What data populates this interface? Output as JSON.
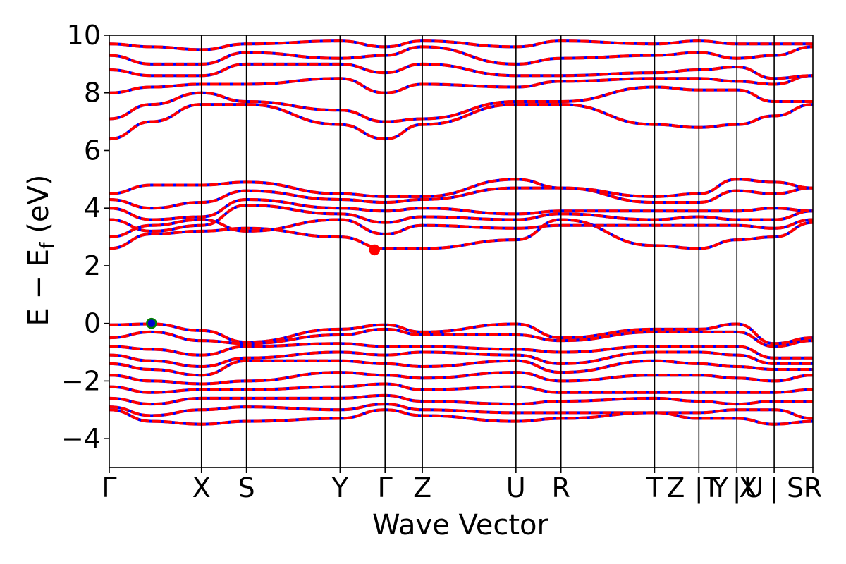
{
  "chart_data": {
    "type": "line",
    "title": "",
    "xlabel": "Wave Vector",
    "ylabel_main": "E − E",
    "ylabel_sub": "f",
    "ylabel_unit": " (eV)",
    "ylim": [
      -5,
      10
    ],
    "yticks": [
      {
        "value": 10,
        "label": "10"
      },
      {
        "value": 8,
        "label": "8"
      },
      {
        "value": 6,
        "label": "6"
      },
      {
        "value": 4,
        "label": "4"
      },
      {
        "value": 2,
        "label": "2"
      },
      {
        "value": 0,
        "label": "0"
      },
      {
        "value": -2,
        "label": "−2"
      },
      {
        "value": -4,
        "label": "−4"
      }
    ],
    "xlim": [
      0,
      1
    ],
    "kpoint_positions": [
      0,
      0.131,
      0.195,
      0.328,
      0.392,
      0.445,
      0.578,
      0.642,
      0.775,
      0.838,
      0.892,
      0.945,
      1.0
    ],
    "kpoint_labels": [
      {
        "x": 0.0,
        "label": "Γ"
      },
      {
        "x": 0.131,
        "label": "X"
      },
      {
        "x": 0.195,
        "label": "S"
      },
      {
        "x": 0.328,
        "label": "Y"
      },
      {
        "x": 0.392,
        "label": "Γ"
      },
      {
        "x": 0.445,
        "label": "Z"
      },
      {
        "x": 0.578,
        "label": "U"
      },
      {
        "x": 0.642,
        "label": "R"
      },
      {
        "x": 0.775,
        "label": "T"
      },
      {
        "x": 0.805,
        "label": "Z"
      },
      {
        "x": 0.838,
        "label": "|"
      },
      {
        "x": 0.856,
        "label": "T"
      },
      {
        "x": 0.868,
        "label": "Y"
      },
      {
        "x": 0.892,
        "label": "|"
      },
      {
        "x": 0.908,
        "label": "X"
      },
      {
        "x": 0.916,
        "label": "U"
      },
      {
        "x": 0.945,
        "label": "|"
      },
      {
        "x": 0.975,
        "label": "S"
      },
      {
        "x": 1.0,
        "label": "R"
      }
    ],
    "series": [
      {
        "color": "#0000ff",
        "style": "solid"
      },
      {
        "color": "#ff0000",
        "style": "dashed"
      }
    ],
    "bands": [
      [
        [
          0,
          -0.05
        ],
        [
          0.06,
          -0.02
        ],
        [
          0.131,
          -0.25
        ],
        [
          0.195,
          -0.65
        ],
        [
          0.328,
          -0.2
        ],
        [
          0.392,
          -0.05
        ],
        [
          0.445,
          -0.3
        ],
        [
          0.578,
          -0.02
        ],
        [
          0.642,
          -0.5
        ],
        [
          0.775,
          -0.2
        ],
        [
          0.838,
          -0.2
        ],
        [
          0.892,
          -0.02
        ],
        [
          0.945,
          -0.7
        ],
        [
          1.0,
          -0.5
        ]
      ],
      [
        [
          0,
          -0.5
        ],
        [
          0.06,
          -0.3
        ],
        [
          0.131,
          -0.6
        ],
        [
          0.195,
          -0.7
        ],
        [
          0.328,
          -0.4
        ],
        [
          0.392,
          -0.2
        ],
        [
          0.445,
          -0.4
        ],
        [
          0.578,
          -0.4
        ],
        [
          0.642,
          -0.6
        ],
        [
          0.775,
          -0.3
        ],
        [
          0.838,
          -0.3
        ],
        [
          0.892,
          -0.3
        ],
        [
          0.945,
          -0.8
        ],
        [
          1.0,
          -0.6
        ]
      ],
      [
        [
          0,
          -0.8
        ],
        [
          0.06,
          -0.9
        ],
        [
          0.131,
          -1.1
        ],
        [
          0.195,
          -0.8
        ],
        [
          0.328,
          -0.7
        ],
        [
          0.392,
          -0.8
        ],
        [
          0.445,
          -0.8
        ],
        [
          0.578,
          -0.9
        ],
        [
          0.642,
          -1.0
        ],
        [
          0.775,
          -0.8
        ],
        [
          0.838,
          -0.8
        ],
        [
          0.892,
          -0.8
        ],
        [
          0.945,
          -1.2
        ],
        [
          1.0,
          -1.2
        ]
      ],
      [
        [
          0,
          -1.1
        ],
        [
          0.06,
          -1.3
        ],
        [
          0.131,
          -1.5
        ],
        [
          0.195,
          -1.2
        ],
        [
          0.328,
          -1.0
        ],
        [
          0.392,
          -1.1
        ],
        [
          0.445,
          -1.0
        ],
        [
          0.578,
          -1.1
        ],
        [
          0.642,
          -1.4
        ],
        [
          0.775,
          -1.0
        ],
        [
          0.838,
          -1.0
        ],
        [
          0.892,
          -1.1
        ],
        [
          0.945,
          -1.4
        ],
        [
          1.0,
          -1.4
        ]
      ],
      [
        [
          0,
          -1.4
        ],
        [
          0.06,
          -1.6
        ],
        [
          0.131,
          -1.8
        ],
        [
          0.195,
          -1.3
        ],
        [
          0.328,
          -1.3
        ],
        [
          0.392,
          -1.4
        ],
        [
          0.445,
          -1.5
        ],
        [
          0.578,
          -1.3
        ],
        [
          0.642,
          -1.7
        ],
        [
          0.775,
          -1.3
        ],
        [
          0.838,
          -1.4
        ],
        [
          0.892,
          -1.5
        ],
        [
          0.945,
          -1.6
        ],
        [
          1.0,
          -1.6
        ]
      ],
      [
        [
          0,
          -1.8
        ],
        [
          0.06,
          -2.0
        ],
        [
          0.131,
          -2.1
        ],
        [
          0.195,
          -2.0
        ],
        [
          0.328,
          -1.7
        ],
        [
          0.392,
          -1.8
        ],
        [
          0.445,
          -1.9
        ],
        [
          0.578,
          -1.7
        ],
        [
          0.642,
          -2.0
        ],
        [
          0.775,
          -1.8
        ],
        [
          0.838,
          -1.8
        ],
        [
          0.892,
          -1.9
        ],
        [
          0.945,
          -2.0
        ],
        [
          1.0,
          -1.8
        ]
      ],
      [
        [
          0,
          -2.2
        ],
        [
          0.06,
          -2.4
        ],
        [
          0.131,
          -2.3
        ],
        [
          0.195,
          -2.3
        ],
        [
          0.328,
          -2.2
        ],
        [
          0.392,
          -2.1
        ],
        [
          0.445,
          -2.3
        ],
        [
          0.578,
          -2.2
        ],
        [
          0.642,
          -2.4
        ],
        [
          0.775,
          -2.4
        ],
        [
          0.838,
          -2.4
        ],
        [
          0.892,
          -2.4
        ],
        [
          0.945,
          -2.4
        ],
        [
          1.0,
          -2.3
        ]
      ],
      [
        [
          0,
          -2.6
        ],
        [
          0.06,
          -2.8
        ],
        [
          0.131,
          -2.6
        ],
        [
          0.195,
          -2.6
        ],
        [
          0.328,
          -2.6
        ],
        [
          0.392,
          -2.5
        ],
        [
          0.445,
          -2.7
        ],
        [
          0.578,
          -2.8
        ],
        [
          0.642,
          -2.7
        ],
        [
          0.775,
          -2.6
        ],
        [
          0.838,
          -2.7
        ],
        [
          0.892,
          -2.8
        ],
        [
          0.945,
          -2.7
        ],
        [
          1.0,
          -2.7
        ]
      ],
      [
        [
          0,
          -2.9
        ],
        [
          0.06,
          -3.2
        ],
        [
          0.131,
          -3.0
        ],
        [
          0.195,
          -2.9
        ],
        [
          0.328,
          -3.0
        ],
        [
          0.392,
          -2.8
        ],
        [
          0.445,
          -3.0
        ],
        [
          0.578,
          -3.1
        ],
        [
          0.642,
          -3.1
        ],
        [
          0.775,
          -3.1
        ],
        [
          0.838,
          -3.1
        ],
        [
          0.892,
          -3.0
        ],
        [
          0.945,
          -3.0
        ],
        [
          1.0,
          -3.3
        ]
      ],
      [
        [
          0,
          -3.0
        ],
        [
          0.06,
          -3.4
        ],
        [
          0.131,
          -3.5
        ],
        [
          0.195,
          -3.4
        ],
        [
          0.328,
          -3.3
        ],
        [
          0.392,
          -3.0
        ],
        [
          0.445,
          -3.2
        ],
        [
          0.578,
          -3.4
        ],
        [
          0.642,
          -3.3
        ],
        [
          0.775,
          -3.1
        ],
        [
          0.838,
          -3.3
        ],
        [
          0.892,
          -3.3
        ],
        [
          0.945,
          -3.5
        ],
        [
          1.0,
          -3.4
        ]
      ],
      [
        [
          0,
          2.6
        ],
        [
          0.06,
          3.1
        ],
        [
          0.131,
          3.2
        ],
        [
          0.195,
          3.3
        ],
        [
          0.328,
          3.0
        ],
        [
          0.392,
          2.6
        ],
        [
          0.445,
          2.6
        ],
        [
          0.578,
          2.9
        ],
        [
          0.642,
          3.6
        ],
        [
          0.775,
          2.7
        ],
        [
          0.838,
          2.6
        ],
        [
          0.892,
          2.9
        ],
        [
          0.945,
          3.0
        ],
        [
          1.0,
          3.5
        ]
      ],
      [
        [
          0,
          3.0
        ],
        [
          0.06,
          3.4
        ],
        [
          0.131,
          3.6
        ],
        [
          0.195,
          3.2
        ],
        [
          0.328,
          3.6
        ],
        [
          0.392,
          3.1
        ],
        [
          0.445,
          3.4
        ],
        [
          0.578,
          3.3
        ],
        [
          0.642,
          3.4
        ],
        [
          0.775,
          3.4
        ],
        [
          0.838,
          3.4
        ],
        [
          0.892,
          3.4
        ],
        [
          0.945,
          3.3
        ],
        [
          1.0,
          3.6
        ]
      ],
      [
        [
          0,
          3.6
        ],
        [
          0.06,
          3.2
        ],
        [
          0.131,
          3.4
        ],
        [
          0.195,
          4.1
        ],
        [
          0.328,
          3.8
        ],
        [
          0.392,
          3.5
        ],
        [
          0.445,
          3.7
        ],
        [
          0.578,
          3.6
        ],
        [
          0.642,
          3.8
        ],
        [
          0.775,
          3.6
        ],
        [
          0.838,
          3.7
        ],
        [
          0.892,
          3.6
        ],
        [
          0.945,
          3.6
        ],
        [
          1.0,
          3.9
        ]
      ],
      [
        [
          0,
          4.0
        ],
        [
          0.06,
          3.6
        ],
        [
          0.131,
          3.7
        ],
        [
          0.195,
          4.3
        ],
        [
          0.328,
          4.0
        ],
        [
          0.392,
          3.9
        ],
        [
          0.445,
          4.0
        ],
        [
          0.578,
          3.8
        ],
        [
          0.642,
          3.9
        ],
        [
          0.775,
          3.9
        ],
        [
          0.838,
          3.9
        ],
        [
          0.892,
          3.9
        ],
        [
          0.945,
          4.0
        ],
        [
          1.0,
          3.9
        ]
      ],
      [
        [
          0,
          4.3
        ],
        [
          0.06,
          4.0
        ],
        [
          0.131,
          4.2
        ],
        [
          0.195,
          4.6
        ],
        [
          0.328,
          4.3
        ],
        [
          0.392,
          4.2
        ],
        [
          0.445,
          4.3
        ],
        [
          0.578,
          4.7
        ],
        [
          0.642,
          4.7
        ],
        [
          0.775,
          4.2
        ],
        [
          0.838,
          4.2
        ],
        [
          0.892,
          4.6
        ],
        [
          0.945,
          4.5
        ],
        [
          1.0,
          4.7
        ]
      ],
      [
        [
          0,
          4.5
        ],
        [
          0.06,
          4.8
        ],
        [
          0.131,
          4.8
        ],
        [
          0.195,
          4.9
        ],
        [
          0.328,
          4.5
        ],
        [
          0.392,
          4.4
        ],
        [
          0.445,
          4.4
        ],
        [
          0.578,
          5.0
        ],
        [
          0.642,
          4.7
        ],
        [
          0.775,
          4.4
        ],
        [
          0.838,
          4.5
        ],
        [
          0.892,
          5.0
        ],
        [
          0.945,
          4.9
        ],
        [
          1.0,
          4.7
        ]
      ],
      [
        [
          0,
          6.4
        ],
        [
          0.06,
          7.0
        ],
        [
          0.131,
          7.6
        ],
        [
          0.195,
          7.6
        ],
        [
          0.328,
          6.9
        ],
        [
          0.392,
          6.4
        ],
        [
          0.445,
          6.9
        ],
        [
          0.578,
          7.6
        ],
        [
          0.642,
          7.6
        ],
        [
          0.775,
          6.9
        ],
        [
          0.838,
          6.8
        ],
        [
          0.892,
          6.9
        ],
        [
          0.945,
          7.2
        ],
        [
          1.0,
          7.6
        ]
      ],
      [
        [
          0,
          7.1
        ],
        [
          0.06,
          7.6
        ],
        [
          0.131,
          8.0
        ],
        [
          0.195,
          7.7
        ],
        [
          0.328,
          7.4
        ],
        [
          0.392,
          7.0
        ],
        [
          0.445,
          7.1
        ],
        [
          0.578,
          7.7
        ],
        [
          0.642,
          7.7
        ],
        [
          0.775,
          8.2
        ],
        [
          0.838,
          8.1
        ],
        [
          0.892,
          8.1
        ],
        [
          0.945,
          7.7
        ],
        [
          1.0,
          7.7
        ]
      ],
      [
        [
          0,
          8.0
        ],
        [
          0.06,
          8.2
        ],
        [
          0.131,
          8.3
        ],
        [
          0.195,
          8.3
        ],
        [
          0.328,
          8.5
        ],
        [
          0.392,
          8.0
        ],
        [
          0.445,
          8.3
        ],
        [
          0.578,
          8.2
        ],
        [
          0.642,
          8.4
        ],
        [
          0.775,
          8.5
        ],
        [
          0.838,
          8.5
        ],
        [
          0.892,
          8.4
        ],
        [
          0.945,
          8.3
        ],
        [
          1.0,
          8.6
        ]
      ],
      [
        [
          0,
          8.8
        ],
        [
          0.06,
          8.6
        ],
        [
          0.131,
          8.6
        ],
        [
          0.195,
          9.0
        ],
        [
          0.328,
          9.0
        ],
        [
          0.392,
          8.7
        ],
        [
          0.445,
          9.0
        ],
        [
          0.578,
          8.6
        ],
        [
          0.642,
          8.6
        ],
        [
          0.775,
          8.7
        ],
        [
          0.838,
          8.8
        ],
        [
          0.892,
          8.9
        ],
        [
          0.945,
          8.5
        ],
        [
          1.0,
          8.6
        ]
      ],
      [
        [
          0,
          9.3
        ],
        [
          0.06,
          9.0
        ],
        [
          0.131,
          9.0
        ],
        [
          0.195,
          9.4
        ],
        [
          0.328,
          9.2
        ],
        [
          0.392,
          9.3
        ],
        [
          0.445,
          9.6
        ],
        [
          0.578,
          9.0
        ],
        [
          0.642,
          9.2
        ],
        [
          0.775,
          9.3
        ],
        [
          0.838,
          9.4
        ],
        [
          0.892,
          9.2
        ],
        [
          0.945,
          9.3
        ],
        [
          1.0,
          9.6
        ]
      ],
      [
        [
          0,
          9.7
        ],
        [
          0.06,
          9.6
        ],
        [
          0.131,
          9.5
        ],
        [
          0.195,
          9.7
        ],
        [
          0.328,
          9.8
        ],
        [
          0.392,
          9.6
        ],
        [
          0.445,
          9.8
        ],
        [
          0.578,
          9.6
        ],
        [
          0.642,
          9.8
        ],
        [
          0.775,
          9.7
        ],
        [
          0.838,
          9.8
        ],
        [
          0.892,
          9.7
        ],
        [
          0.945,
          9.7
        ],
        [
          1.0,
          9.7
        ]
      ]
    ],
    "markers": [
      {
        "name": "vbm",
        "x": 0.06,
        "y": 0.0,
        "fill": "#0000cc",
        "stroke": "#008000"
      },
      {
        "name": "cbm",
        "x": 0.377,
        "y": 2.55,
        "fill": "#ff0000",
        "stroke": "#ff0000"
      }
    ]
  }
}
